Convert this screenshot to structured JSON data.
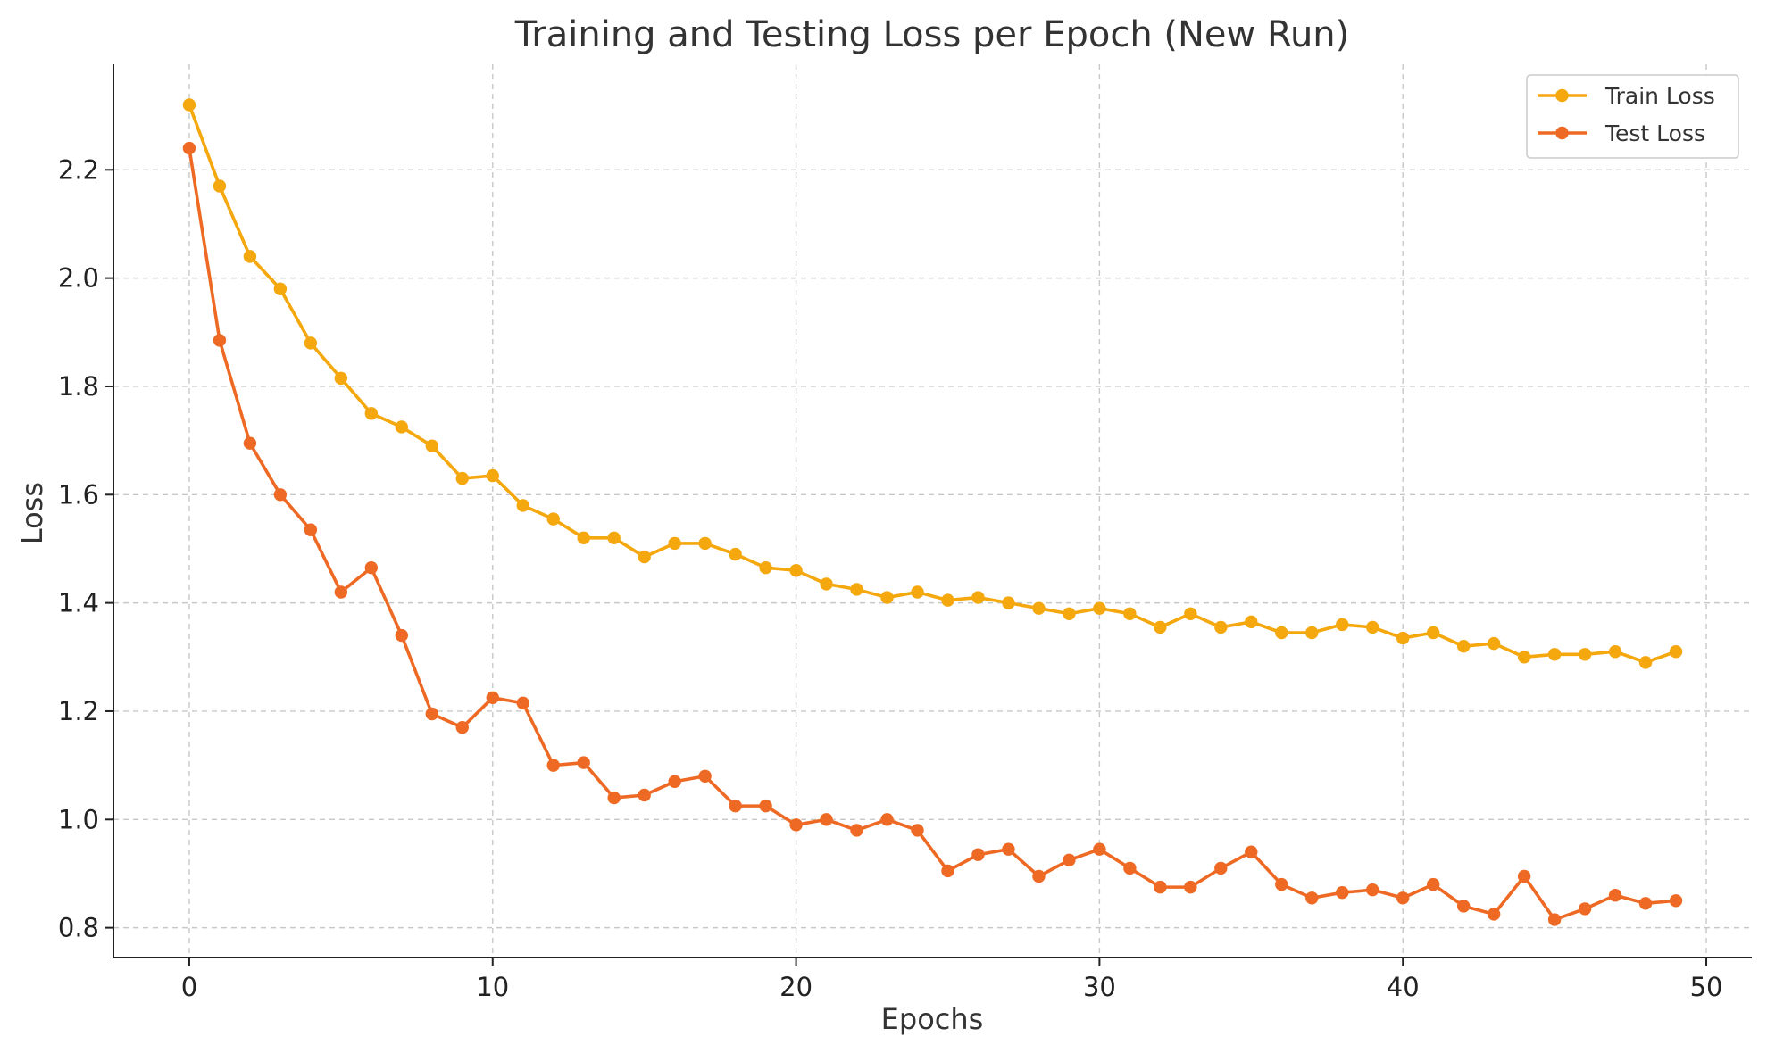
{
  "chart_data": {
    "type": "line",
    "title": "Training and Testing Loss per Epoch (New Run)",
    "xlabel": "Epochs",
    "ylabel": "Loss",
    "xlim": [
      -2.5,
      51.5
    ],
    "ylim": [
      0.745,
      2.395
    ],
    "xticks": [
      0,
      10,
      20,
      30,
      40,
      50
    ],
    "yticks": [
      0.8,
      1.0,
      1.2,
      1.4,
      1.6,
      1.8,
      2.0,
      2.2
    ],
    "grid": true,
    "legend_position": "top-right",
    "x": [
      0,
      1,
      2,
      3,
      4,
      5,
      6,
      7,
      8,
      9,
      10,
      11,
      12,
      13,
      14,
      15,
      16,
      17,
      18,
      19,
      20,
      21,
      22,
      23,
      24,
      25,
      26,
      27,
      28,
      29,
      30,
      31,
      32,
      33,
      34,
      35,
      36,
      37,
      38,
      39,
      40,
      41,
      42,
      43,
      44,
      45,
      46,
      47,
      48,
      49
    ],
    "series": [
      {
        "name": "Train Loss",
        "color": "#F5A70E",
        "values": [
          2.32,
          2.17,
          2.04,
          1.98,
          1.88,
          1.815,
          1.75,
          1.725,
          1.69,
          1.63,
          1.635,
          1.58,
          1.555,
          1.52,
          1.52,
          1.485,
          1.51,
          1.51,
          1.49,
          1.465,
          1.46,
          1.435,
          1.425,
          1.41,
          1.42,
          1.405,
          1.41,
          1.4,
          1.39,
          1.38,
          1.39,
          1.38,
          1.355,
          1.38,
          1.355,
          1.365,
          1.345,
          1.345,
          1.36,
          1.355,
          1.335,
          1.345,
          1.32,
          1.325,
          1.3,
          1.305,
          1.305,
          1.31,
          1.29,
          1.31
        ]
      },
      {
        "name": "Test Loss",
        "color": "#EE6A24",
        "values": [
          2.24,
          1.885,
          1.695,
          1.6,
          1.535,
          1.42,
          1.465,
          1.34,
          1.195,
          1.17,
          1.225,
          1.215,
          1.1,
          1.105,
          1.04,
          1.045,
          1.07,
          1.08,
          1.025,
          1.025,
          0.99,
          1.0,
          0.98,
          1.0,
          0.98,
          0.905,
          0.935,
          0.945,
          0.895,
          0.925,
          0.945,
          0.91,
          0.875,
          0.875,
          0.91,
          0.94,
          0.88,
          0.855,
          0.865,
          0.87,
          0.855,
          0.88,
          0.84,
          0.825,
          0.895,
          0.815,
          0.835,
          0.86,
          0.845,
          0.85
        ]
      }
    ]
  }
}
